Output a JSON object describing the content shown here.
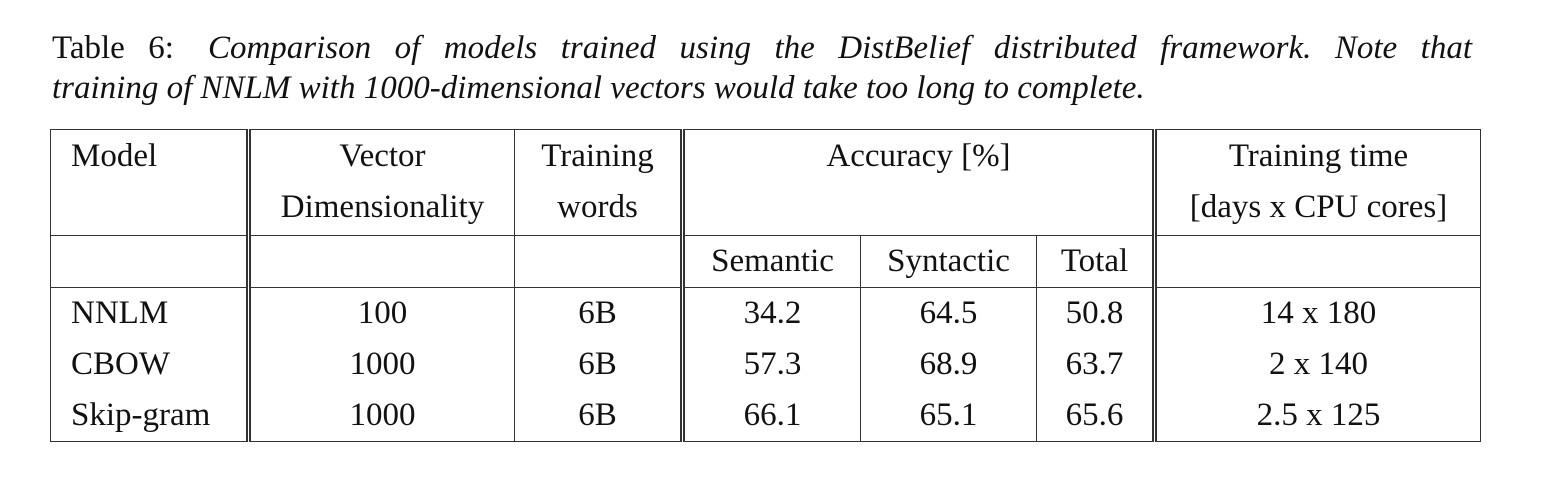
{
  "caption": {
    "label": "Table 6:",
    "line1": "Comparison of models trained using the DistBelief distributed framework. Note that",
    "line2": "training of NNLM with 1000-dimensional vectors would take too long to complete."
  },
  "table": {
    "headers": {
      "model": "Model",
      "vector_dim_line1": "Vector",
      "vector_dim_line2": "Dimensionality",
      "training_words_line1": "Training",
      "training_words_line2": "words",
      "accuracy": "Accuracy [%]",
      "training_time_line1": "Training time",
      "training_time_line2": "[days x CPU cores]",
      "semantic": "Semantic",
      "syntactic": "Syntactic",
      "total": "Total"
    },
    "rows": [
      {
        "model": "NNLM",
        "dim": "100",
        "words": "6B",
        "semantic": "34.2",
        "syntactic": "64.5",
        "total": "50.8",
        "time": "14 x 180"
      },
      {
        "model": "CBOW",
        "dim": "1000",
        "words": "6B",
        "semantic": "57.3",
        "syntactic": "68.9",
        "total": "63.7",
        "time": "2 x 140"
      },
      {
        "model": "Skip-gram",
        "dim": "1000",
        "words": "6B",
        "semantic": "66.1",
        "syntactic": "65.1",
        "total": "65.6",
        "time": "2.5 x 125"
      }
    ]
  }
}
